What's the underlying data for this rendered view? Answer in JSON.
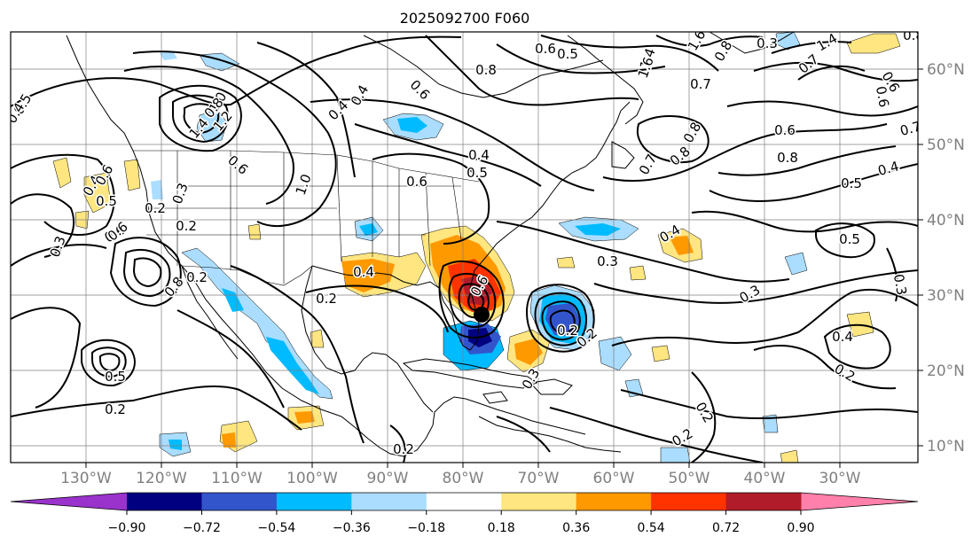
{
  "title": "2025092700 F060",
  "lon_labels": [
    "130°W",
    "120°W",
    "110°W",
    "100°W",
    "90°W",
    "80°W",
    "70°W",
    "60°W",
    "50°W",
    "40°W",
    "30°W"
  ],
  "lat_labels": [
    "60°N",
    "50°N",
    "40°N",
    "30°N",
    "20°N",
    "10°N"
  ],
  "colorbar": {
    "ticks": [
      "−0.90",
      "−0.72",
      "−0.54",
      "−0.36",
      "−0.18",
      "0.18",
      "0.36",
      "0.54",
      "0.72",
      "0.90"
    ],
    "colors": [
      "#9933cc",
      "#000080",
      "#3355cc",
      "#00bbff",
      "#aaddff",
      "#ffffff",
      "#ffe680",
      "#ff9900",
      "#ff3300",
      "#b01c2a",
      "#ff80aa"
    ]
  },
  "contour_labels": [
    "0.5",
    "0.4",
    "0.3",
    "0.6",
    "1.0",
    "1.2",
    "0.2",
    "0.6",
    "0.4",
    "0.3",
    "0.4",
    "0.6",
    "0.8",
    "0.4",
    "1.0",
    "0.5",
    "0.6",
    "0.2",
    "0.3",
    "0.3",
    "0.2",
    "0.2",
    "0.6",
    "0.2",
    "0.4",
    "0.6",
    "0.2",
    "0.2",
    "0.5",
    "0.6",
    "0.7",
    "0.8",
    "1.4",
    "1.6",
    "1.4",
    "0.8",
    "0.5",
    "0.6",
    "0.7",
    "0.8",
    "0.6",
    "0.7",
    "0.8",
    "0.5",
    "0.4",
    "0.4",
    "0.5",
    "0.3",
    "0.3",
    "0.4",
    "0.2",
    "0.2",
    "0.2",
    "0.2",
    "0.5",
    "0.8",
    "0.6",
    "0.4",
    "0.8",
    "1.4",
    "0.8",
    "1.6",
    "0.7",
    "0.6",
    "0.3"
  ],
  "legend_note": ""
}
